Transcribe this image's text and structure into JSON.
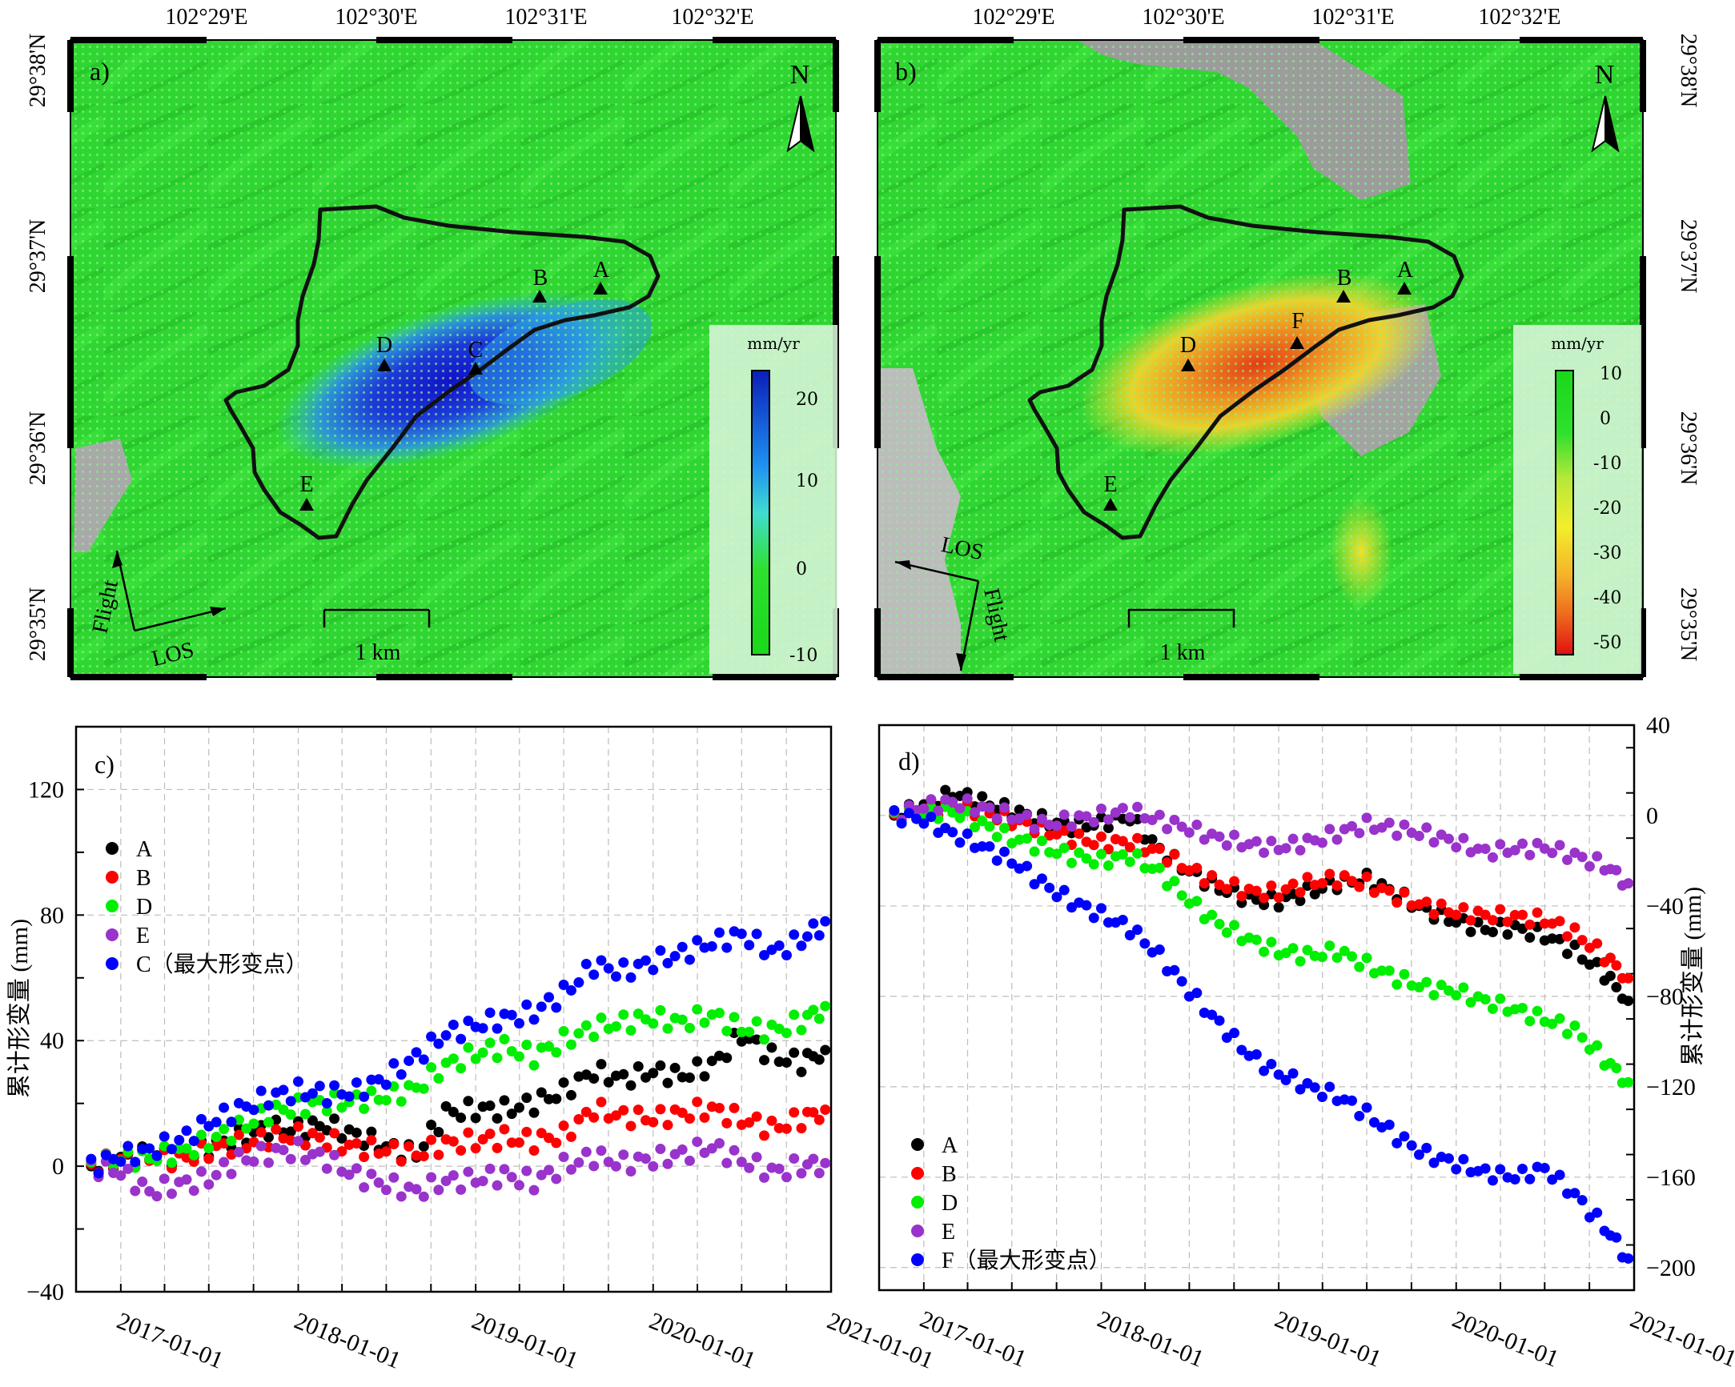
{
  "maps": [
    {
      "label": "a)",
      "lon_ticks": [
        "102°29'E",
        "102°30'E",
        "102°31'E",
        "102°32'E"
      ],
      "lat_ticks": [
        "29°38'N",
        "29°37'N",
        "29°36'N",
        "29°35'N"
      ],
      "north": "N",
      "scale": "1 km",
      "flight": "Flight",
      "los": "LOS",
      "points": [
        "A",
        "B",
        "C",
        "D",
        "E"
      ],
      "colorbar": {
        "unit": "mm/yr",
        "ticks": [
          "20",
          "10",
          "0",
          "-10"
        ],
        "colors": [
          "#0a1fb8",
          "#1e8ff0",
          "#40dcd0",
          "#2ee02e",
          "#19d81a"
        ]
      }
    },
    {
      "label": "b)",
      "lon_ticks": [
        "102°29'E",
        "102°30'E",
        "102°31'E",
        "102°32'E"
      ],
      "lat_ticks": [
        "29°38'N",
        "29°37'N",
        "29°36'N",
        "29°35'N"
      ],
      "north": "N",
      "scale": "1 km",
      "flight": "Flight",
      "los": "LOS",
      "points": [
        "A",
        "B",
        "D",
        "E",
        "F"
      ],
      "colorbar": {
        "unit": "mm/yr",
        "ticks": [
          "10",
          "0",
          "-10",
          "-20",
          "-30",
          "-40",
          "-50"
        ],
        "colors": [
          "#19d81a",
          "#2ee02e",
          "#b6e83a",
          "#f3ee2a",
          "#f5b32a",
          "#ef6a1e",
          "#e01010"
        ]
      }
    }
  ],
  "chart_data": [
    {
      "type": "scatter",
      "label": "c)",
      "ylabel": "累计形变量 (mm)",
      "x_ticks": [
        "2017-01-01",
        "2018-01-01",
        "2019-01-01",
        "2020-01-01",
        "2021-01-01"
      ],
      "xlim": [
        "2016-10-01",
        "2021-01-01"
      ],
      "ylim": [
        -40,
        140
      ],
      "y_ticks": [
        -40,
        0,
        40,
        80,
        120
      ],
      "grid": true,
      "legend": "left",
      "series": [
        {
          "name": "A",
          "color": "#000000",
          "x": [
            "2016-11-01",
            "2017-01-01",
            "2017-03-01",
            "2017-05-01",
            "2017-07-01",
            "2017-09-01",
            "2017-11-01",
            "2018-01-01",
            "2018-03-01",
            "2018-05-01",
            "2018-07-01",
            "2018-09-01",
            "2018-11-01",
            "2019-01-01",
            "2019-03-01",
            "2019-05-01",
            "2019-07-01",
            "2019-09-01",
            "2019-11-01",
            "2020-01-01",
            "2020-03-01",
            "2020-05-01",
            "2020-07-01",
            "2020-09-01",
            "2020-11-01",
            "2020-12-20"
          ],
          "y": [
            0,
            2,
            4,
            3,
            6,
            9,
            12,
            12,
            13,
            10,
            6,
            4,
            17,
            18,
            18,
            20,
            24,
            30,
            28,
            30,
            29,
            32,
            42,
            35,
            33,
            37
          ]
        },
        {
          "name": "B",
          "color": "#ff0000",
          "x": [
            "2016-11-01",
            "2017-01-01",
            "2017-03-01",
            "2017-05-01",
            "2017-07-01",
            "2017-09-01",
            "2017-11-01",
            "2018-01-01",
            "2018-03-01",
            "2018-05-01",
            "2018-07-01",
            "2018-09-01",
            "2018-11-01",
            "2019-01-01",
            "2019-03-01",
            "2019-05-01",
            "2019-07-01",
            "2019-09-01",
            "2019-11-01",
            "2020-01-01",
            "2020-03-01",
            "2020-05-01",
            "2020-07-01",
            "2020-09-01",
            "2020-11-01",
            "2020-12-20"
          ],
          "y": [
            0,
            2,
            3,
            2,
            5,
            7,
            9,
            10,
            8,
            6,
            5,
            4,
            7,
            8,
            9,
            8,
            10,
            18,
            16,
            15,
            17,
            18,
            15,
            12,
            15,
            18
          ]
        },
        {
          "name": "D",
          "color": "#00ee00",
          "x": [
            "2016-11-01",
            "2017-01-01",
            "2017-03-01",
            "2017-05-01",
            "2017-07-01",
            "2017-09-01",
            "2017-11-01",
            "2018-01-01",
            "2018-03-01",
            "2018-05-01",
            "2018-07-01",
            "2018-09-01",
            "2018-11-01",
            "2019-01-01",
            "2019-03-01",
            "2019-05-01",
            "2019-07-01",
            "2019-09-01",
            "2019-11-01",
            "2020-01-01",
            "2020-03-01",
            "2020-05-01",
            "2020-07-01",
            "2020-09-01",
            "2020-11-01",
            "2020-12-20"
          ],
          "y": [
            0,
            2,
            3,
            4,
            8,
            12,
            17,
            19,
            20,
            21,
            22,
            25,
            32,
            36,
            38,
            35,
            40,
            44,
            46,
            47,
            46,
            48,
            44,
            43,
            46,
            51
          ]
        },
        {
          "name": "E",
          "color": "#9933cc",
          "x": [
            "2016-11-01",
            "2017-01-01",
            "2017-03-01",
            "2017-05-01",
            "2017-07-01",
            "2017-09-01",
            "2017-11-01",
            "2018-01-01",
            "2018-03-01",
            "2018-05-01",
            "2018-07-01",
            "2018-09-01",
            "2018-11-01",
            "2019-01-01",
            "2019-03-01",
            "2019-05-01",
            "2019-07-01",
            "2019-09-01",
            "2019-11-01",
            "2020-01-01",
            "2020-03-01",
            "2020-05-01",
            "2020-07-01",
            "2020-09-01",
            "2020-11-01",
            "2020-12-20"
          ],
          "y": [
            0,
            -2,
            -8,
            -6,
            -4,
            2,
            4,
            5,
            2,
            -3,
            -6,
            -8,
            -5,
            -4,
            -3,
            -5,
            0,
            3,
            1,
            2,
            4,
            6,
            2,
            -2,
            0,
            1
          ]
        },
        {
          "name": "C（最大形变点）",
          "color": "#0000ff",
          "x": [
            "2016-11-01",
            "2017-01-01",
            "2017-03-01",
            "2017-05-01",
            "2017-07-01",
            "2017-09-01",
            "2017-11-01",
            "2018-01-01",
            "2018-03-01",
            "2018-05-01",
            "2018-07-01",
            "2018-09-01",
            "2018-11-01",
            "2019-01-01",
            "2019-03-01",
            "2019-05-01",
            "2019-07-01",
            "2019-09-01",
            "2019-11-01",
            "2020-01-01",
            "2020-03-01",
            "2020-05-01",
            "2020-07-01",
            "2020-09-01",
            "2020-11-01",
            "2020-12-20"
          ],
          "y": [
            0,
            3,
            5,
            8,
            14,
            18,
            22,
            24,
            23,
            24,
            28,
            35,
            42,
            45,
            47,
            49,
            55,
            64,
            62,
            65,
            68,
            71,
            74,
            68,
            72,
            78
          ]
        }
      ]
    },
    {
      "type": "scatter",
      "label": "d)",
      "ylabel": "累计形变量 (mm)",
      "x_ticks": [
        "2017-01-01",
        "2018-01-01",
        "2019-01-01",
        "2020-01-01",
        "2021-01-01"
      ],
      "xlim": [
        "2016-10-01",
        "2021-01-01"
      ],
      "ylim": [
        -210,
        40
      ],
      "y_ticks": [
        -200,
        -160,
        -120,
        -80,
        -40,
        0,
        40
      ],
      "grid": true,
      "legend": "bottom-left",
      "series": [
        {
          "name": "A",
          "color": "#000000",
          "x": [
            "2016-11-01",
            "2017-01-01",
            "2017-03-01",
            "2017-05-01",
            "2017-07-01",
            "2017-09-01",
            "2017-11-01",
            "2018-01-01",
            "2018-03-01",
            "2018-05-01",
            "2018-07-01",
            "2018-09-01",
            "2018-11-01",
            "2019-01-01",
            "2019-03-01",
            "2019-05-01",
            "2019-07-01",
            "2019-09-01",
            "2019-11-01",
            "2020-01-01",
            "2020-03-01",
            "2020-05-01",
            "2020-07-01",
            "2020-09-01",
            "2020-11-01",
            "2020-12-20"
          ],
          "y": [
            0,
            4,
            10,
            6,
            2,
            -2,
            -5,
            -3,
            -1,
            -15,
            -25,
            -32,
            -37,
            -38,
            -34,
            -30,
            -28,
            -35,
            -42,
            -47,
            -50,
            -50,
            -53,
            -60,
            -70,
            -82
          ]
        },
        {
          "name": "B",
          "color": "#ff0000",
          "x": [
            "2016-11-01",
            "2017-01-01",
            "2017-03-01",
            "2017-05-01",
            "2017-07-01",
            "2017-09-01",
            "2017-11-01",
            "2018-01-01",
            "2018-03-01",
            "2018-05-01",
            "2018-07-01",
            "2018-09-01",
            "2018-11-01",
            "2019-01-01",
            "2019-03-01",
            "2019-05-01",
            "2019-07-01",
            "2019-09-01",
            "2019-11-01",
            "2020-01-01",
            "2020-03-01",
            "2020-05-01",
            "2020-07-01",
            "2020-09-01",
            "2020-11-01",
            "2020-12-20"
          ],
          "y": [
            0,
            2,
            4,
            2,
            -2,
            -6,
            -10,
            -12,
            -12,
            -16,
            -24,
            -30,
            -34,
            -34,
            -30,
            -28,
            -30,
            -36,
            -40,
            -43,
            -44,
            -45,
            -46,
            -52,
            -62,
            -72
          ]
        },
        {
          "name": "D",
          "color": "#00ee00",
          "x": [
            "2016-11-01",
            "2017-01-01",
            "2017-03-01",
            "2017-05-01",
            "2017-07-01",
            "2017-09-01",
            "2017-11-01",
            "2018-01-01",
            "2018-03-01",
            "2018-05-01",
            "2018-07-01",
            "2018-09-01",
            "2018-11-01",
            "2019-01-01",
            "2019-03-01",
            "2019-05-01",
            "2019-07-01",
            "2019-09-01",
            "2019-11-01",
            "2020-01-01",
            "2020-03-01",
            "2020-05-01",
            "2020-07-01",
            "2020-09-01",
            "2020-11-01",
            "2020-12-20"
          ],
          "y": [
            0,
            1,
            2,
            -4,
            -10,
            -14,
            -18,
            -20,
            -18,
            -25,
            -38,
            -48,
            -55,
            -60,
            -62,
            -60,
            -66,
            -72,
            -76,
            -78,
            -82,
            -86,
            -90,
            -95,
            -108,
            -118
          ]
        },
        {
          "name": "E",
          "color": "#9933cc",
          "x": [
            "2016-11-01",
            "2017-01-01",
            "2017-03-01",
            "2017-05-01",
            "2017-07-01",
            "2017-09-01",
            "2017-11-01",
            "2018-01-01",
            "2018-03-01",
            "2018-05-01",
            "2018-07-01",
            "2018-09-01",
            "2018-11-01",
            "2019-01-01",
            "2019-03-01",
            "2019-05-01",
            "2019-07-01",
            "2019-09-01",
            "2019-11-01",
            "2020-01-01",
            "2020-03-01",
            "2020-05-01",
            "2020-07-01",
            "2020-09-01",
            "2020-11-01",
            "2020-12-20"
          ],
          "y": [
            0,
            4,
            6,
            3,
            0,
            -4,
            -2,
            0,
            2,
            -2,
            -6,
            -10,
            -13,
            -14,
            -12,
            -8,
            -4,
            -6,
            -8,
            -12,
            -16,
            -15,
            -14,
            -18,
            -22,
            -30
          ]
        },
        {
          "name": "F（最大形变点）",
          "color": "#0000ff",
          "x": [
            "2016-11-01",
            "2017-01-01",
            "2017-03-01",
            "2017-05-01",
            "2017-07-01",
            "2017-09-01",
            "2017-11-01",
            "2018-01-01",
            "2018-03-01",
            "2018-05-01",
            "2018-07-01",
            "2018-09-01",
            "2018-11-01",
            "2019-01-01",
            "2019-03-01",
            "2019-05-01",
            "2019-07-01",
            "2019-09-01",
            "2019-11-01",
            "2020-01-01",
            "2020-03-01",
            "2020-05-01",
            "2020-07-01",
            "2020-09-01",
            "2020-11-01",
            "2020-12-20"
          ],
          "y": [
            0,
            -2,
            -8,
            -14,
            -20,
            -30,
            -38,
            -44,
            -50,
            -62,
            -78,
            -92,
            -106,
            -114,
            -120,
            -124,
            -132,
            -142,
            -150,
            -154,
            -158,
            -160,
            -156,
            -168,
            -182,
            -196
          ]
        }
      ]
    }
  ]
}
